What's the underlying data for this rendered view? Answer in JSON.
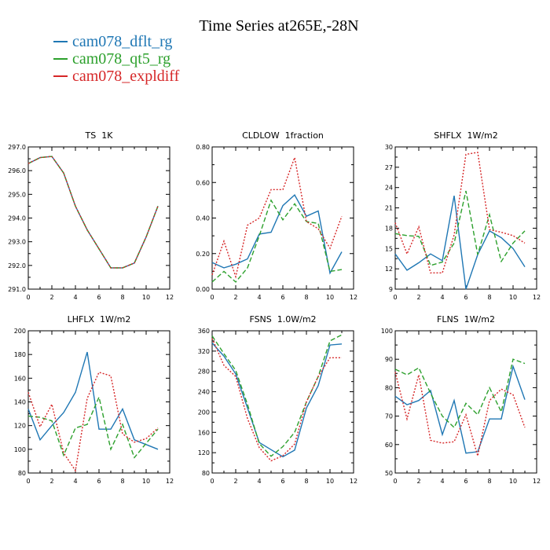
{
  "title": "Time Series at265E,-28N",
  "legend": [
    {
      "name": "cam078_dflt_rg",
      "color": "#1f77b4",
      "dash": ""
    },
    {
      "name": "cam078_qt5_rg",
      "color": "#2ca02c",
      "dash": "6,3"
    },
    {
      "name": "cam078_expldiff",
      "color": "#d62728",
      "dash": "2,2"
    }
  ],
  "chart_data": [
    {
      "type": "line",
      "title": "TS 1K",
      "xlim": [
        0,
        12
      ],
      "ylim": [
        291,
        297
      ],
      "xticks": [
        0,
        2,
        4,
        6,
        8,
        10,
        12
      ],
      "yticks": [
        291,
        292,
        293,
        294,
        295,
        296,
        297
      ],
      "ytick_labels": [
        "291.0",
        "292.0",
        "293.0",
        "294.0",
        "295.0",
        "296.0",
        "297.0"
      ],
      "x": [
        0,
        1,
        2,
        3,
        4,
        5,
        6,
        7,
        8,
        9,
        10,
        11
      ],
      "series": [
        {
          "name": "cam078_dflt_rg",
          "values": [
            296.3,
            296.55,
            296.6,
            295.9,
            294.5,
            293.5,
            292.7,
            291.9,
            291.9,
            292.1,
            293.2,
            294.5
          ]
        },
        {
          "name": "cam078_qt5_rg",
          "values": [
            296.3,
            296.55,
            296.6,
            295.9,
            294.5,
            293.5,
            292.7,
            291.9,
            291.9,
            292.1,
            293.2,
            294.5
          ]
        },
        {
          "name": "cam078_expldiff",
          "values": [
            296.3,
            296.55,
            296.6,
            295.9,
            294.5,
            293.5,
            292.7,
            291.9,
            291.9,
            292.1,
            293.2,
            294.5
          ]
        }
      ]
    },
    {
      "type": "line",
      "title": "CLDLOW 1fraction",
      "xlim": [
        0,
        12
      ],
      "ylim": [
        0,
        0.8
      ],
      "xticks": [
        0,
        2,
        4,
        6,
        8,
        10,
        12
      ],
      "yticks": [
        0,
        0.2,
        0.4,
        0.6,
        0.8
      ],
      "ytick_labels": [
        "0.00",
        "0.20",
        "0.40",
        "0.60",
        "0.80"
      ],
      "x": [
        0,
        1,
        2,
        3,
        4,
        5,
        6,
        7,
        8,
        9,
        10,
        11
      ],
      "series": [
        {
          "name": "cam078_dflt_rg",
          "values": [
            0.15,
            0.12,
            0.14,
            0.17,
            0.31,
            0.32,
            0.47,
            0.53,
            0.41,
            0.44,
            0.09,
            0.21
          ]
        },
        {
          "name": "cam078_qt5_rg",
          "values": [
            0.04,
            0.1,
            0.04,
            0.12,
            0.3,
            0.5,
            0.39,
            0.48,
            0.38,
            0.37,
            0.1,
            0.11
          ]
        },
        {
          "name": "cam078_expldiff",
          "values": [
            0.08,
            0.27,
            0.07,
            0.36,
            0.4,
            0.56,
            0.56,
            0.74,
            0.38,
            0.34,
            0.23,
            0.41
          ]
        }
      ]
    },
    {
      "type": "line",
      "title": "SHFLX 1W/m2",
      "xlim": [
        0,
        12
      ],
      "ylim": [
        9,
        30
      ],
      "xticks": [
        0,
        2,
        4,
        6,
        8,
        10,
        12
      ],
      "yticks": [
        9,
        12,
        15,
        18,
        21,
        24,
        27,
        30
      ],
      "ytick_labels": [
        "9",
        "12",
        "15",
        "18",
        "21",
        "24",
        "27",
        "30"
      ],
      "x": [
        0,
        1,
        2,
        3,
        4,
        5,
        6,
        7,
        8,
        9,
        10,
        11
      ],
      "series": [
        {
          "name": "cam078_dflt_rg",
          "values": [
            14.2,
            11.8,
            12.9,
            14.2,
            13.2,
            22.8,
            9.0,
            14.1,
            17.6,
            16.6,
            15.0,
            12.3
          ]
        },
        {
          "name": "cam078_qt5_rg",
          "values": [
            17.2,
            16.9,
            16.8,
            12.5,
            13.0,
            15.8,
            23.5,
            14.1,
            20.0,
            13.1,
            15.8,
            17.6
          ]
        },
        {
          "name": "cam078_expldiff",
          "values": [
            18.8,
            14.2,
            18.2,
            11.4,
            11.4,
            17.0,
            28.9,
            29.2,
            17.8,
            17.4,
            16.9,
            15.8
          ]
        }
      ]
    },
    {
      "type": "line",
      "title": "LHFLX 1W/m2",
      "xlim": [
        0,
        12
      ],
      "ylim": [
        80,
        200
      ],
      "xticks": [
        0,
        2,
        4,
        6,
        8,
        10,
        12
      ],
      "yticks": [
        80,
        100,
        120,
        140,
        160,
        180,
        200
      ],
      "ytick_labels": [
        "80",
        "100",
        "120",
        "140",
        "160",
        "180",
        "200"
      ],
      "x": [
        0,
        1,
        2,
        3,
        4,
        5,
        6,
        7,
        8,
        9,
        10,
        11
      ],
      "series": [
        {
          "name": "cam078_dflt_rg",
          "values": [
            134,
            108,
            120,
            131,
            148,
            182,
            117,
            117,
            134,
            108,
            104,
            100
          ]
        },
        {
          "name": "cam078_qt5_rg",
          "values": [
            128,
            127,
            124,
            95,
            118,
            121,
            144,
            100,
            121,
            93,
            105,
            117
          ]
        },
        {
          "name": "cam078_expldiff",
          "values": [
            148,
            119,
            138,
            97,
            82,
            143,
            165,
            162,
            113,
            106,
            109,
            118
          ]
        }
      ]
    },
    {
      "type": "line",
      "title": "FSNS 1.0W/m2",
      "xlim": [
        0,
        12
      ],
      "ylim": [
        80,
        360
      ],
      "xticks": [
        0,
        2,
        4,
        6,
        8,
        10,
        12
      ],
      "yticks": [
        80,
        120,
        160,
        200,
        240,
        280,
        320,
        360
      ],
      "ytick_labels": [
        "80",
        "120",
        "160",
        "200",
        "240",
        "280",
        "320",
        "360"
      ],
      "x": [
        0,
        1,
        2,
        3,
        4,
        5,
        6,
        7,
        8,
        9,
        10,
        11
      ],
      "series": [
        {
          "name": "cam078_dflt_rg",
          "values": [
            336,
            310,
            275,
            208,
            140,
            126,
            112,
            125,
            208,
            252,
            332,
            334
          ]
        },
        {
          "name": "cam078_qt5_rg",
          "values": [
            350,
            315,
            282,
            215,
            138,
            113,
            132,
            160,
            220,
            270,
            340,
            352
          ]
        },
        {
          "name": "cam078_expldiff",
          "values": [
            345,
            292,
            270,
            187,
            130,
            104,
            114,
            137,
            220,
            270,
            307,
            307
          ]
        }
      ]
    },
    {
      "type": "line",
      "title": "FLNS 1W/m2",
      "xlim": [
        0,
        12
      ],
      "ylim": [
        50,
        100
      ],
      "xticks": [
        0,
        2,
        4,
        6,
        8,
        10,
        12
      ],
      "yticks": [
        50,
        60,
        70,
        80,
        90,
        100
      ],
      "ytick_labels": [
        "50",
        "60",
        "70",
        "80",
        "90",
        "100"
      ],
      "x": [
        0,
        1,
        2,
        3,
        4,
        5,
        6,
        7,
        8,
        9,
        10,
        11
      ],
      "series": [
        {
          "name": "cam078_dflt_rg",
          "values": [
            77,
            74,
            75.5,
            79,
            63.5,
            75.5,
            57,
            57.5,
            69,
            69,
            87.5,
            75.8
          ]
        },
        {
          "name": "cam078_qt5_rg",
          "values": [
            86.5,
            84.5,
            87,
            78,
            70,
            66,
            74.5,
            70.5,
            80,
            71.5,
            90,
            88.5
          ]
        },
        {
          "name": "cam078_expldiff",
          "values": [
            85.5,
            69,
            84.5,
            61.5,
            60.5,
            61,
            70.5,
            56,
            75.5,
            79.5,
            77.5,
            66
          ]
        }
      ]
    }
  ]
}
